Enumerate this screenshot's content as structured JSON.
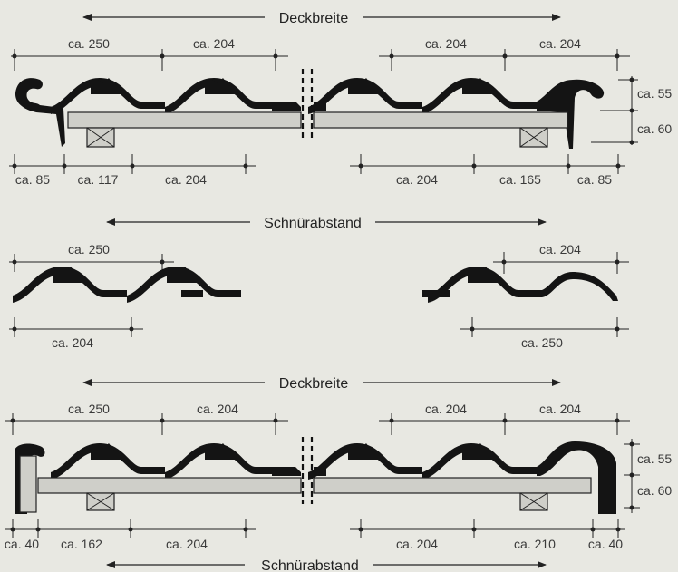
{
  "headings": {
    "top": "Deckbreite",
    "mid": "Schnürabstand",
    "bottom_top": "Deckbreite",
    "bottom": "Schnürabstand"
  },
  "diagram1": {
    "top_left": [
      "ca. 250",
      "ca. 204"
    ],
    "top_right": [
      "ca. 204",
      "ca. 204"
    ],
    "side": [
      "ca. 55",
      "ca. 60"
    ],
    "bottom_left": [
      "ca. 85",
      "ca. 117",
      "ca. 204"
    ],
    "bottom_right": [
      "ca. 204",
      "ca. 165",
      "ca. 85"
    ]
  },
  "diagram2": {
    "left_top": "ca. 250",
    "left_bottom": "ca. 204",
    "right_top": "ca. 204",
    "right_bottom": "ca. 250"
  },
  "diagram3": {
    "top_left": [
      "ca. 250",
      "ca. 204"
    ],
    "top_right": [
      "ca. 204",
      "ca. 204"
    ],
    "side": [
      "ca. 55",
      "ca. 60"
    ],
    "bottom_left": [
      "ca. 40",
      "ca. 162",
      "ca. 204"
    ],
    "bottom_right": [
      "ca. 204",
      "ca. 210",
      "ca. 40"
    ]
  }
}
